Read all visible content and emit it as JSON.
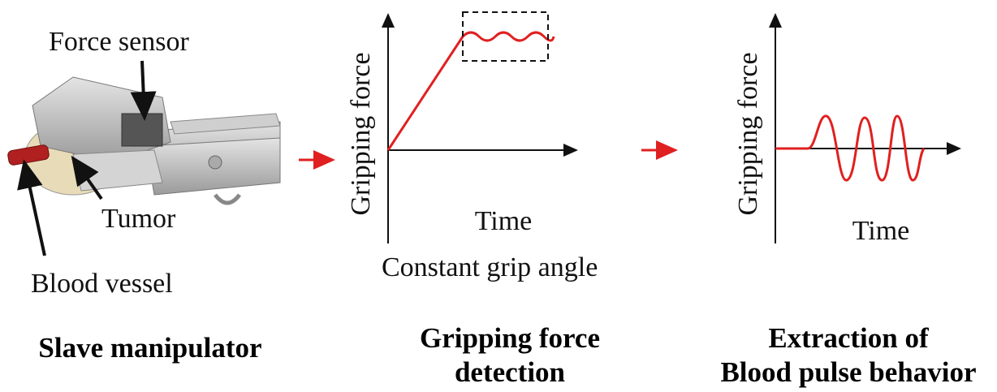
{
  "panels": [
    {
      "labels": [
        "Force sensor",
        "Tumor",
        "Blood vessel"
      ],
      "caption": [
        "Slave manipulator"
      ]
    },
    {
      "y_label": "Gripping force",
      "x_label": "Time",
      "note": "Constant grip angle",
      "caption": [
        "Gripping force",
        "detection"
      ]
    },
    {
      "y_label": "Gripping force",
      "x_label": "Time",
      "caption": [
        "Extraction of",
        "Blood pulse behavior"
      ]
    }
  ]
}
